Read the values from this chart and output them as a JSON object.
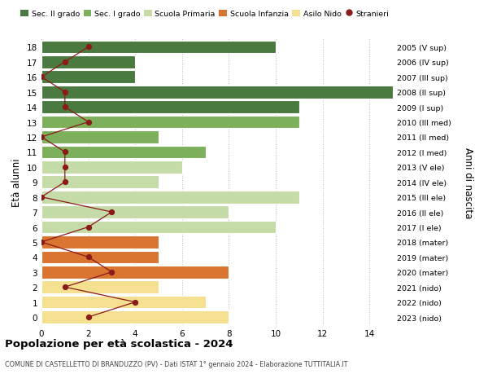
{
  "ages": [
    18,
    17,
    16,
    15,
    14,
    13,
    12,
    11,
    10,
    9,
    8,
    7,
    6,
    5,
    4,
    3,
    2,
    1,
    0
  ],
  "right_labels": [
    "2005 (V sup)",
    "2006 (IV sup)",
    "2007 (III sup)",
    "2008 (II sup)",
    "2009 (I sup)",
    "2010 (III med)",
    "2011 (II med)",
    "2012 (I med)",
    "2013 (V ele)",
    "2014 (IV ele)",
    "2015 (III ele)",
    "2016 (II ele)",
    "2017 (I ele)",
    "2018 (mater)",
    "2019 (mater)",
    "2020 (mater)",
    "2021 (nido)",
    "2022 (nido)",
    "2023 (nido)"
  ],
  "bar_values": [
    10,
    4,
    4,
    15,
    11,
    11,
    5,
    7,
    6,
    5,
    11,
    8,
    10,
    5,
    5,
    8,
    5,
    7,
    8
  ],
  "bar_colors": [
    "#4a7a40",
    "#4a7a40",
    "#4a7a40",
    "#4a7a40",
    "#4a7a40",
    "#7db05a",
    "#7db05a",
    "#7db05a",
    "#c5dba8",
    "#c5dba8",
    "#c5dba8",
    "#c5dba8",
    "#c5dba8",
    "#d97530",
    "#d97530",
    "#d97530",
    "#f5e090",
    "#f5e090",
    "#f5e090"
  ],
  "stranieri_values": [
    2,
    1,
    0,
    1,
    1,
    2,
    0,
    1,
    1,
    1,
    0,
    3,
    2,
    0,
    2,
    3,
    1,
    4,
    2
  ],
  "legend_labels": [
    "Sec. II grado",
    "Sec. I grado",
    "Scuola Primaria",
    "Scuola Infanzia",
    "Asilo Nido",
    "Stranieri"
  ],
  "legend_colors": [
    "#4a7a40",
    "#7db05a",
    "#c5dba8",
    "#d97530",
    "#f5e090",
    "#8b1a1a"
  ],
  "title": "Popolazione per età scolastica - 2024",
  "subtitle": "COMUNE DI CASTELLETTO DI BRANDUZZO (PV) - Dati ISTAT 1° gennaio 2024 - Elaborazione TUTTITALIA.IT",
  "ylabel": "Età alunni",
  "right_ylabel": "Anni di nascita",
  "xlim": [
    0,
    15
  ],
  "xticks": [
    0,
    2,
    4,
    6,
    8,
    10,
    12,
    14
  ],
  "background_color": "#ffffff",
  "bar_height": 0.85,
  "stranieri_color": "#8b1a1a"
}
